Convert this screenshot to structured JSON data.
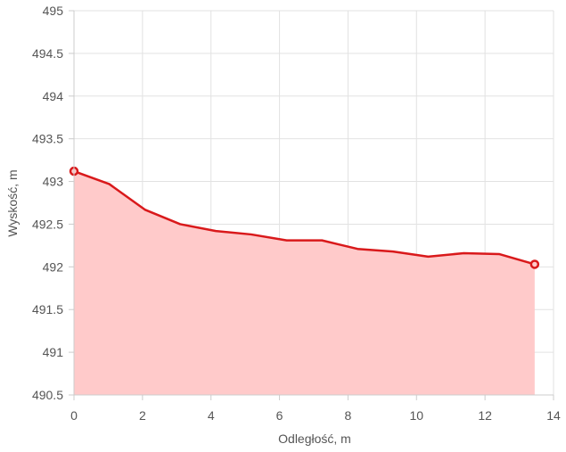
{
  "chart_data": {
    "type": "area",
    "xlabel": "Odległość, m",
    "ylabel": "Wyskość, m",
    "xlim": [
      0,
      14
    ],
    "ylim": [
      490.5,
      495
    ],
    "x_ticks": [
      0,
      2,
      4,
      6,
      8,
      10,
      12,
      14
    ],
    "y_ticks": [
      490.5,
      491,
      491.5,
      492,
      492.5,
      493,
      493.5,
      494,
      494.5,
      495
    ],
    "grid": true,
    "series": [
      {
        "x": [
          0,
          1.03,
          2.07,
          3.1,
          4.14,
          5.17,
          6.21,
          7.24,
          8.28,
          9.31,
          10.34,
          11.38,
          12.41,
          13.45
        ],
        "y": [
          493.12,
          492.97,
          492.67,
          492.5,
          492.42,
          492.38,
          492.31,
          492.31,
          492.21,
          492.18,
          492.12,
          492.16,
          492.15,
          492.03
        ],
        "line_color": "#d9191b",
        "fill_color": "#ffcaca"
      }
    ]
  }
}
